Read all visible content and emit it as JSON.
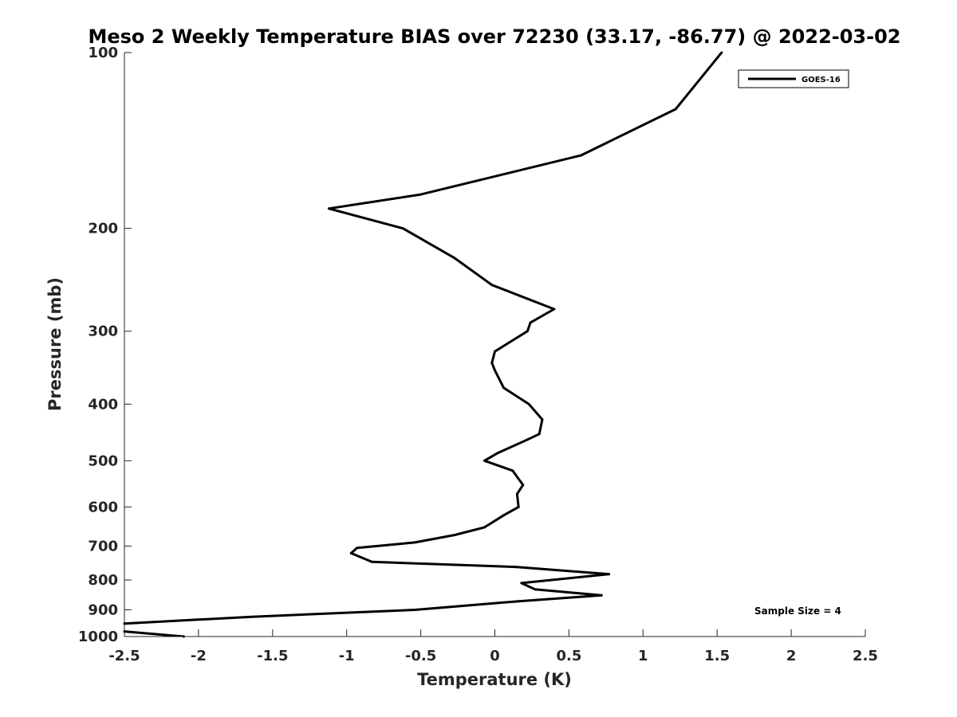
{
  "chart_data": {
    "type": "line",
    "title": "Meso 2 Weekly Temperature BIAS over 72230 (33.17, -86.77) @ 2022-03-02",
    "xlabel": "Temperature (K)",
    "ylabel": "Pressure (mb)",
    "xlim": [
      -2.5,
      2.5
    ],
    "ylim": [
      100,
      1000
    ],
    "y_scale": "log",
    "y_reversed": true,
    "x_ticks": [
      -2.5,
      -2,
      -1.5,
      -1,
      -0.5,
      0,
      0.5,
      1,
      1.5,
      2,
      2.5
    ],
    "x_tick_labels": [
      "-2.5",
      "-2",
      "-1.5",
      "-1",
      "-0.5",
      "0",
      "0.5",
      "1",
      "1.5",
      "2",
      "2.5"
    ],
    "y_ticks": [
      100,
      200,
      300,
      400,
      500,
      600,
      700,
      800,
      900,
      1000
    ],
    "y_tick_labels": [
      "100",
      "200",
      "300",
      "400",
      "500",
      "600",
      "700",
      "800",
      "900",
      "1000"
    ],
    "grid": false,
    "legend_position": "top-right",
    "series": [
      {
        "name": "GOES-16",
        "color": "#000000",
        "points": [
          {
            "x": 1.53,
            "p": 100
          },
          {
            "x": 1.22,
            "p": 125
          },
          {
            "x": 0.58,
            "p": 150
          },
          {
            "x": -0.5,
            "p": 175
          },
          {
            "x": -1.12,
            "p": 185
          },
          {
            "x": -0.62,
            "p": 200
          },
          {
            "x": -0.27,
            "p": 225
          },
          {
            "x": -0.02,
            "p": 250
          },
          {
            "x": 0.4,
            "p": 275
          },
          {
            "x": 0.24,
            "p": 290
          },
          {
            "x": 0.22,
            "p": 300
          },
          {
            "x": 0.0,
            "p": 325
          },
          {
            "x": -0.02,
            "p": 340
          },
          {
            "x": 0.0,
            "p": 350
          },
          {
            "x": 0.06,
            "p": 375
          },
          {
            "x": 0.23,
            "p": 400
          },
          {
            "x": 0.32,
            "p": 425
          },
          {
            "x": 0.3,
            "p": 450
          },
          {
            "x": 0.22,
            "p": 460
          },
          {
            "x": 0.02,
            "p": 485
          },
          {
            "x": -0.07,
            "p": 500
          },
          {
            "x": 0.12,
            "p": 520
          },
          {
            "x": 0.19,
            "p": 550
          },
          {
            "x": 0.15,
            "p": 570
          },
          {
            "x": 0.16,
            "p": 600
          },
          {
            "x": 0.06,
            "p": 620
          },
          {
            "x": -0.07,
            "p": 650
          },
          {
            "x": -0.27,
            "p": 670
          },
          {
            "x": -0.54,
            "p": 690
          },
          {
            "x": -0.93,
            "p": 705
          },
          {
            "x": -0.97,
            "p": 720
          },
          {
            "x": -0.83,
            "p": 745
          },
          {
            "x": 0.14,
            "p": 760
          },
          {
            "x": 0.77,
            "p": 782
          },
          {
            "x": 0.18,
            "p": 810
          },
          {
            "x": 0.27,
            "p": 830
          },
          {
            "x": 0.72,
            "p": 850
          },
          {
            "x": 0.16,
            "p": 870
          },
          {
            "x": -0.54,
            "p": 900
          },
          {
            "x": -1.64,
            "p": 925
          },
          {
            "x": -2.5,
            "p": 950
          },
          {
            "x": -2.55,
            "p": 970
          },
          {
            "x": -2.5,
            "p": 980
          },
          {
            "x": -2.1,
            "p": 1000
          }
        ]
      }
    ],
    "annotation": "Sample Size = 4"
  }
}
